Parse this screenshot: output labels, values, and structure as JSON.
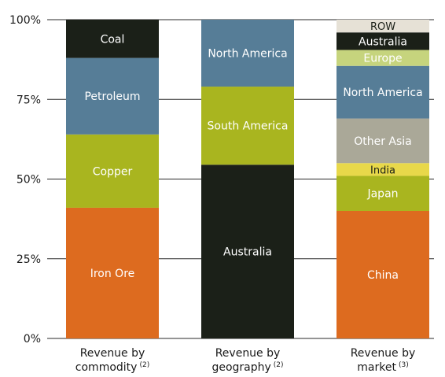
{
  "chart_data": {
    "type": "bar",
    "stacked": true,
    "percent_stacked": true,
    "y_ticks": [
      "0%",
      "25%",
      "50%",
      "75%",
      "100%"
    ],
    "ylim": [
      0,
      100
    ],
    "grid": true,
    "categories": [
      {
        "label_line1": "Revenue by",
        "label_line2": "commodity",
        "footnote": "(2)",
        "segments": [
          {
            "name": "Iron Ore",
            "value": 41,
            "color": "#dd6b1f"
          },
          {
            "name": "Copper",
            "value": 23,
            "color": "#a9b51f"
          },
          {
            "name": "Petroleum",
            "value": 24,
            "color": "#567d97"
          },
          {
            "name": "Coal",
            "value": 12,
            "color": "#1b2018"
          }
        ]
      },
      {
        "label_line1": "Revenue by",
        "label_line2": "geography",
        "footnote": "(2)",
        "segments": [
          {
            "name": "Australia",
            "value": 54.5,
            "color": "#1b2018"
          },
          {
            "name": "South America",
            "value": 24.5,
            "color": "#a9b51f"
          },
          {
            "name": "North America",
            "value": 21,
            "color": "#567d97"
          }
        ]
      },
      {
        "label_line1": "Revenue by",
        "label_line2": "market",
        "footnote": "(3)",
        "segments": [
          {
            "name": "China",
            "value": 40,
            "color": "#dd6b1f"
          },
          {
            "name": "Japan",
            "value": 11,
            "color": "#a9b51f"
          },
          {
            "name": "India",
            "value": 4,
            "color": "#e8d84a"
          },
          {
            "name": "Other Asia",
            "value": 14,
            "color": "#aaa898"
          },
          {
            "name": "North America",
            "value": 16.5,
            "color": "#567d97"
          },
          {
            "name": "Europe",
            "value": 5,
            "color": "#c6d47d"
          },
          {
            "name": "Australia",
            "value": 5.5,
            "color": "#1b2018"
          },
          {
            "name": "ROW",
            "value": 4,
            "color": "#e6e1d6"
          }
        ]
      }
    ]
  }
}
